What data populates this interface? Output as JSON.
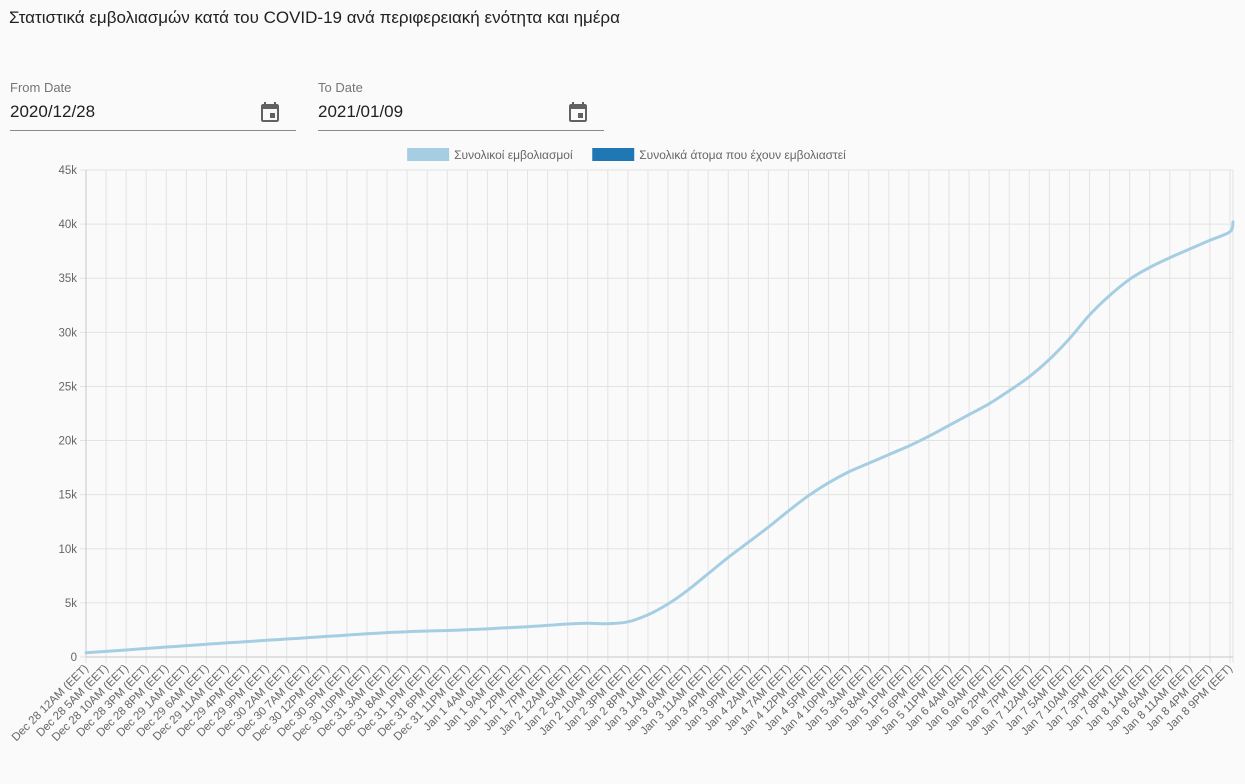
{
  "page": {
    "title": "Στατιστικά εμβολιασμών κατά του COVID-19 ανά περιφερειακή ενότητα και ημέρα"
  },
  "filters": {
    "from": {
      "label": "From Date",
      "value": "2020/12/28",
      "icon": "calendar-icon"
    },
    "to": {
      "label": "To Date",
      "value": "2021/01/09",
      "icon": "calendar-icon"
    }
  },
  "chart_data": {
    "type": "line",
    "title": "",
    "xlabel": "",
    "ylabel": "",
    "ylim": [
      0,
      45000
    ],
    "y_ticks": [
      0,
      5000,
      10000,
      15000,
      20000,
      25000,
      30000,
      35000,
      40000,
      45000
    ],
    "y_tick_labels": [
      "0",
      "5k",
      "10k",
      "15k",
      "20k",
      "25k",
      "30k",
      "35k",
      "40k",
      "45k"
    ],
    "grid": true,
    "legend_position": "top-center",
    "categories": [
      "Dec 28 12AM (EET)",
      "Dec 28 5AM (EET)",
      "Dec 28 10AM (EET)",
      "Dec 28 3PM (EET)",
      "Dec 28 8PM (EET)",
      "Dec 29 1AM (EET)",
      "Dec 29 6AM (EET)",
      "Dec 29 11AM (EET)",
      "Dec 29 4PM (EET)",
      "Dec 29 9PM (EET)",
      "Dec 30 2AM (EET)",
      "Dec 30 7AM (EET)",
      "Dec 30 12PM (EET)",
      "Dec 30 5PM (EET)",
      "Dec 30 10PM (EET)",
      "Dec 31 3AM (EET)",
      "Dec 31 8AM (EET)",
      "Dec 31 1PM (EET)",
      "Dec 31 6PM (EET)",
      "Dec 31 11PM (EET)",
      "Jan 1 4AM (EET)",
      "Jan 1 9AM (EET)",
      "Jan 1 2PM (EET)",
      "Jan 1 7PM (EET)",
      "Jan 2 12AM (EET)",
      "Jan 2 5AM (EET)",
      "Jan 2 10AM (EET)",
      "Jan 2 3PM (EET)",
      "Jan 2 8PM (EET)",
      "Jan 3 1AM (EET)",
      "Jan 3 6AM (EET)",
      "Jan 3 11AM (EET)",
      "Jan 3 4PM (EET)",
      "Jan 3 9PM (EET)",
      "Jan 4 2AM (EET)",
      "Jan 4 7AM (EET)",
      "Jan 4 12PM (EET)",
      "Jan 4 5PM (EET)",
      "Jan 4 10PM (EET)",
      "Jan 5 3AM (EET)",
      "Jan 5 8AM (EET)",
      "Jan 5 1PM (EET)",
      "Jan 5 6PM (EET)",
      "Jan 5 11PM (EET)",
      "Jan 6 4AM (EET)",
      "Jan 6 9AM (EET)",
      "Jan 6 2PM (EET)",
      "Jan 6 7PM (EET)",
      "Jan 7 12AM (EET)",
      "Jan 7 5AM (EET)",
      "Jan 7 10AM (EET)",
      "Jan 7 3PM (EET)",
      "Jan 7 8PM (EET)",
      "Jan 8 1AM (EET)",
      "Jan 8 6AM (EET)",
      "Jan 8 11AM (EET)",
      "Jan 8 4PM (EET)",
      "Jan 8 9PM (EET)"
    ],
    "series": [
      {
        "name": "Συνολικοί εμβολιασμοί",
        "color": "#a6cee3",
        "values": [
          400,
          520,
          650,
          790,
          920,
          1050,
          1180,
          1300,
          1420,
          1540,
          1660,
          1780,
          1900,
          2020,
          2140,
          2250,
          2340,
          2400,
          2450,
          2520,
          2600,
          2700,
          2800,
          2920,
          3050,
          3120,
          3080,
          3250,
          3900,
          4900,
          6200,
          7700,
          9200,
          10600,
          12000,
          13500,
          14900,
          16100,
          17100,
          17900,
          18700,
          19500,
          20400,
          21400,
          22400,
          23400,
          24600,
          25900,
          27500,
          29400,
          31600,
          33400,
          34900,
          36000,
          36900,
          37700,
          38500,
          39300
        ]
      },
      {
        "name": "Συνολικά άτομα που έχουν εμβολιαστεί",
        "color": "#1f78b4",
        "values": [
          400,
          520,
          650,
          790,
          920,
          1050,
          1180,
          1300,
          1420,
          1540,
          1660,
          1780,
          1900,
          2020,
          2140,
          2250,
          2340,
          2400,
          2450,
          2520,
          2600,
          2700,
          2800,
          2920,
          3050,
          3120,
          3080,
          3250,
          3900,
          4900,
          6200,
          7700,
          9200,
          10600,
          12000,
          13500,
          14900,
          16100,
          17100,
          17900,
          18700,
          19500,
          20400,
          21400,
          22400,
          23400,
          24600,
          25900,
          27500,
          29400,
          31600,
          33400,
          34900,
          36000,
          36900,
          37700,
          38500,
          39300
        ]
      }
    ],
    "end_value": 40200
  }
}
